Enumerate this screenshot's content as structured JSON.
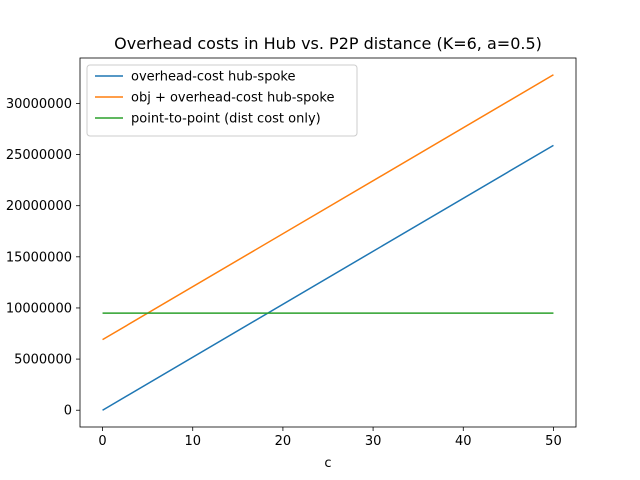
{
  "chart_data": {
    "type": "line",
    "title": "Overhead costs in Hub vs. P2P distance (K=6, a=0.5)",
    "xlabel": "c",
    "ylabel": "",
    "xlim": [
      -2.5,
      52.5
    ],
    "ylim": [
      -1640000,
      34440000
    ],
    "x_ticks": [
      0,
      10,
      20,
      30,
      40,
      50
    ],
    "y_ticks": [
      0,
      5000000,
      10000000,
      15000000,
      20000000,
      25000000,
      30000000
    ],
    "grid": false,
    "legend_position": "top-left",
    "series": [
      {
        "name": "overhead-cost hub-spoke",
        "color": "#1f77b4",
        "x": [
          0,
          50
        ],
        "y": [
          0,
          25900000
        ]
      },
      {
        "name": "obj + overhead-cost hub-spoke",
        "color": "#ff7f0e",
        "x": [
          0,
          50
        ],
        "y": [
          6900000,
          32800000
        ]
      },
      {
        "name": "point-to-point (dist cost only)",
        "color": "#2ca02c",
        "x": [
          0,
          50
        ],
        "y": [
          9500000,
          9500000
        ]
      }
    ]
  }
}
